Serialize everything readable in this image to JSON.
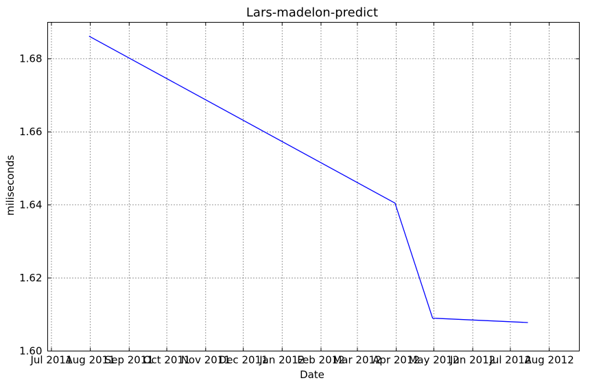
{
  "chart_data": {
    "type": "line",
    "title": "Lars-madelon-predict",
    "xlabel": "Date",
    "ylabel": "miliseconds",
    "x_tick_labels": [
      "Jul 2011",
      "Aug 2011",
      "Sep 2011",
      "Oct 2011",
      "Nov 2011",
      "Dec 2011",
      "Jan 2012",
      "Feb 2012",
      "Mar 2012",
      "Apr 2012",
      "May 2012",
      "Jun 2012",
      "Jul 2012",
      "Aug 2012"
    ],
    "x_tick_dates": [
      "2011-07-01",
      "2011-08-01",
      "2011-09-01",
      "2011-10-01",
      "2011-11-01",
      "2011-12-01",
      "2012-01-01",
      "2012-02-01",
      "2012-03-01",
      "2012-04-01",
      "2012-05-01",
      "2012-06-01",
      "2012-07-01",
      "2012-08-01"
    ],
    "y_tick_labels": [
      "1.60",
      "1.62",
      "1.64",
      "1.66",
      "1.68"
    ],
    "y_tick_values": [
      1.6,
      1.62,
      1.64,
      1.66,
      1.68
    ],
    "xlim": [
      "2011-06-28",
      "2012-08-25"
    ],
    "ylim": [
      1.6,
      1.69
    ],
    "grid": true,
    "series": [
      {
        "color": "#0000ff",
        "x": [
          "2011-07-31",
          "2012-03-31",
          "2012-04-30",
          "2012-07-15"
        ],
        "y": [
          1.6862,
          1.6405,
          1.609,
          1.6078
        ]
      }
    ]
  }
}
